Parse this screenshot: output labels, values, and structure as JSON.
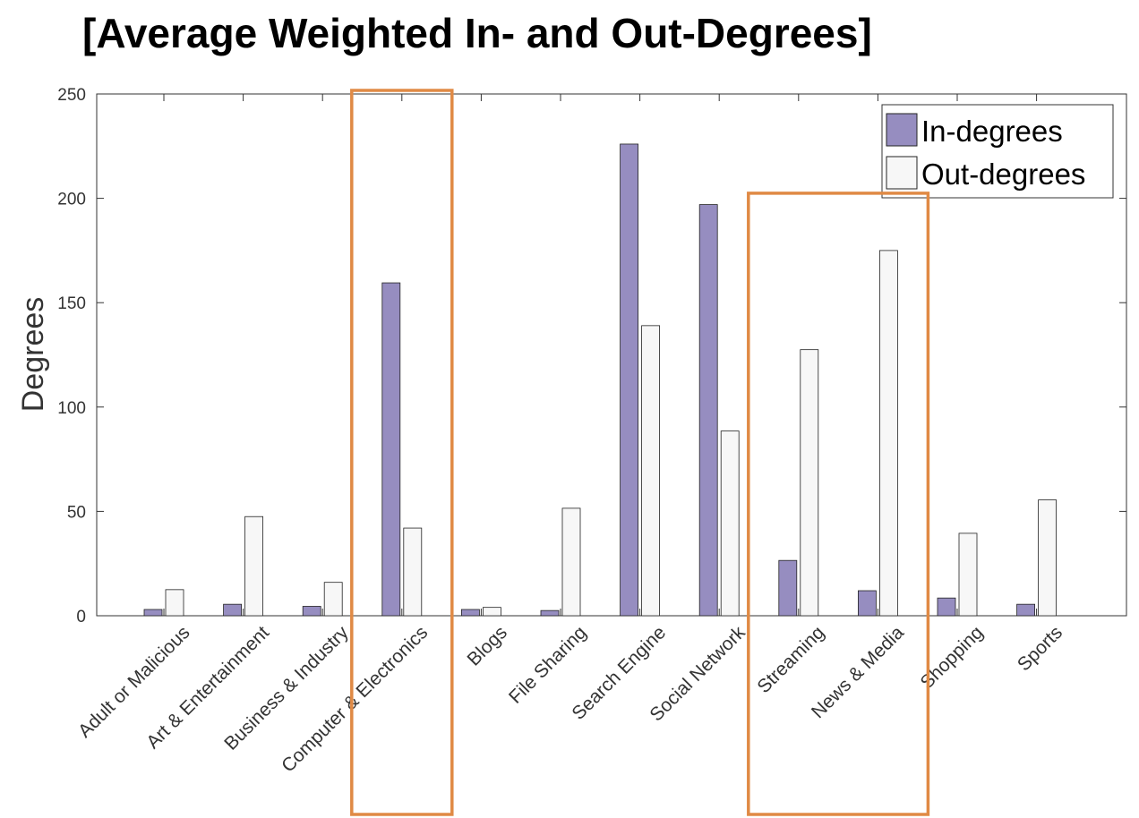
{
  "title": "[Average Weighted In- and Out-Degrees]",
  "colors": {
    "in": "#968dc0",
    "out": "#f7f7f7",
    "highlight": "#e08a45",
    "axis": "#333333"
  },
  "chart_data": {
    "type": "bar",
    "title": "[Average Weighted In- and Out-Degrees]",
    "xlabel": "",
    "ylabel": "Degrees",
    "ylim": [
      0,
      250
    ],
    "yticks": [
      0,
      50,
      100,
      150,
      200,
      250
    ],
    "grid": false,
    "legend": "top-right",
    "categories": [
      "Adult or Malicious",
      "Art & Entertainment",
      "Business & Industry",
      "Computer & Electronics",
      "Blogs",
      "File Sharing",
      "Search Engine",
      "Social Network",
      "Streaming",
      "News & Media",
      "Shopping",
      "Sports"
    ],
    "series": [
      {
        "name": "In-degrees",
        "values": [
          3,
          5.5,
          4.5,
          159.5,
          3,
          2.5,
          226,
          197,
          26.5,
          12,
          8.5,
          5.5
        ]
      },
      {
        "name": "Out-degrees",
        "values": [
          12.5,
          47.5,
          16,
          42,
          4,
          51.5,
          139,
          88.5,
          127.5,
          175,
          39.5,
          55.5
        ]
      }
    ],
    "highlighted_categories": [
      "Computer & Electronics",
      "Streaming",
      "News & Media"
    ]
  }
}
